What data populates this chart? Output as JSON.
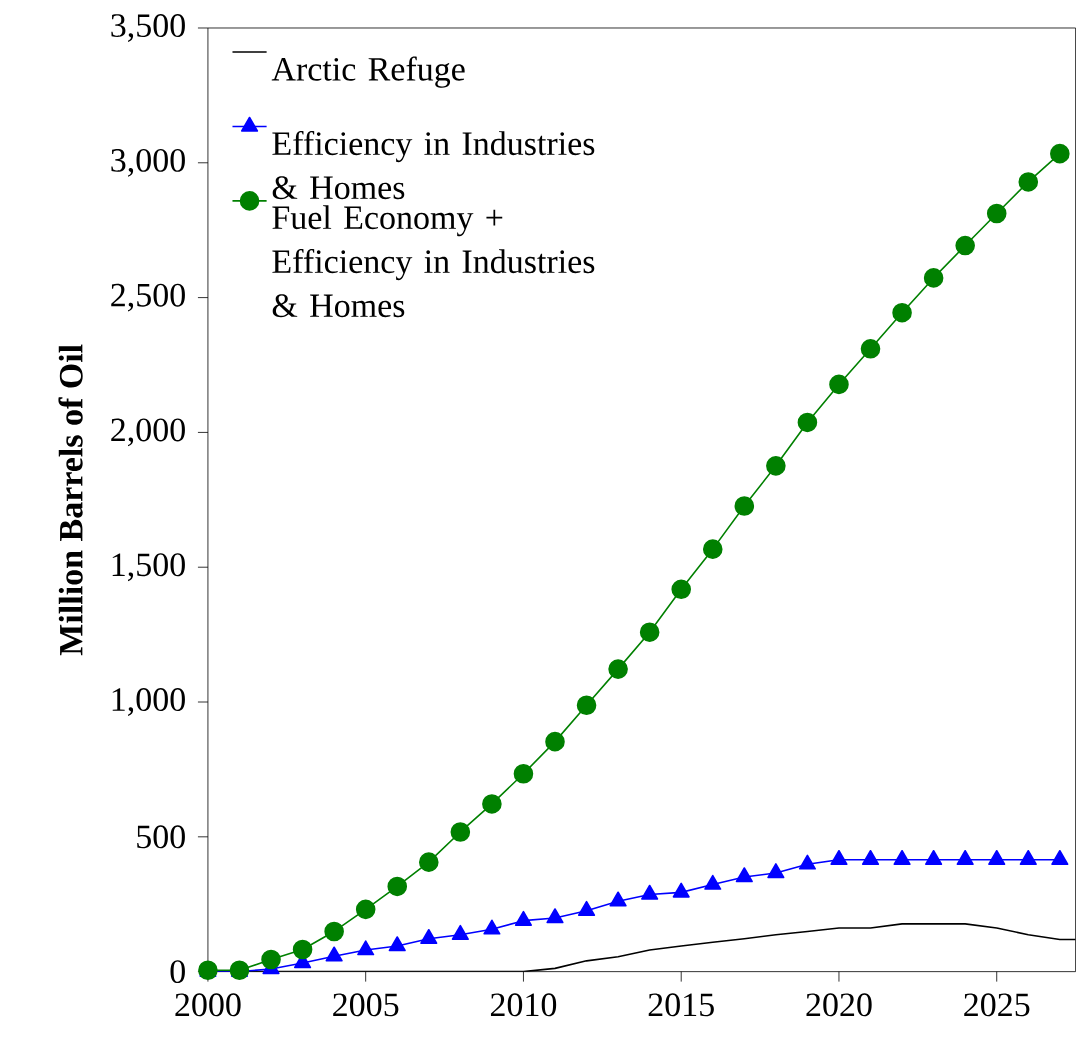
{
  "chart_data": {
    "type": "line",
    "ylabel": "Million Barrels of Oil",
    "xlim": [
      2000,
      2027.5
    ],
    "ylim": [
      0,
      3500
    ],
    "xticks": [
      2000,
      2005,
      2010,
      2015,
      2020,
      2025
    ],
    "yticks": [
      0,
      500,
      {
        "value": 1000,
        "label": "1,000"
      },
      {
        "value": 1500,
        "label": "1,500"
      },
      {
        "value": 2000,
        "label": "2,000"
      },
      {
        "value": 2500,
        "label": "2,500"
      },
      {
        "value": 3000,
        "label": "3,000"
      },
      {
        "value": 3500,
        "label": "3,500"
      }
    ],
    "grid": false,
    "legend": "top left",
    "line_style": "solid",
    "series": [
      {
        "name": "Arctic Refuge",
        "color": "#000000",
        "marker": "none",
        "x": [
          2000,
          2005,
          2010,
          2011,
          2012,
          2013,
          2014,
          2015,
          2016,
          2017,
          2018,
          2019,
          2020,
          2021,
          2022,
          2023,
          2024,
          2025,
          2026,
          2027,
          2027.5
        ],
        "values": [
          0,
          0,
          0,
          12,
          40,
          55,
          80,
          95,
          109,
          122,
          137,
          149,
          162,
          162,
          177,
          177,
          177,
          162,
          137,
          119,
          119
        ]
      },
      {
        "name": "Efficiency in Industries & Homes",
        "color": "#0000ff",
        "marker": "triangle",
        "x": [
          2000,
          2001,
          2002,
          2003,
          2004,
          2005,
          2006,
          2007,
          2008,
          2009,
          2010,
          2011,
          2012,
          2013,
          2014,
          2015,
          2016,
          2017,
          2018,
          2019,
          2020,
          2021,
          2022,
          2023,
          2024,
          2025,
          2026,
          2027
        ],
        "values": [
          0,
          0,
          10,
          32,
          57,
          80,
          95,
          122,
          137,
          157,
          189,
          199,
          226,
          261,
          286,
          294,
          323,
          351,
          366,
          398,
          415,
          415,
          415,
          415,
          415,
          415,
          415,
          415
        ]
      },
      {
        "name": "Fuel Economy + Efficiency in Industries & Homes",
        "color": "#008000",
        "marker": "circle",
        "x": [
          2000,
          2001,
          2002,
          2003,
          2004,
          2005,
          2006,
          2007,
          2008,
          2009,
          2010,
          2011,
          2012,
          2013,
          2014,
          2015,
          2016,
          2017,
          2018,
          2019,
          2020,
          2021,
          2022,
          2023,
          2024,
          2025,
          2026,
          2027
        ],
        "values": [
          5,
          5,
          45,
          82,
          149,
          231,
          316,
          406,
          518,
          622,
          734,
          853,
          988,
          1122,
          1259,
          1418,
          1567,
          1727,
          1876,
          2037,
          2178,
          2310,
          2444,
          2573,
          2693,
          2812,
          2929,
          3034
        ]
      }
    ]
  }
}
